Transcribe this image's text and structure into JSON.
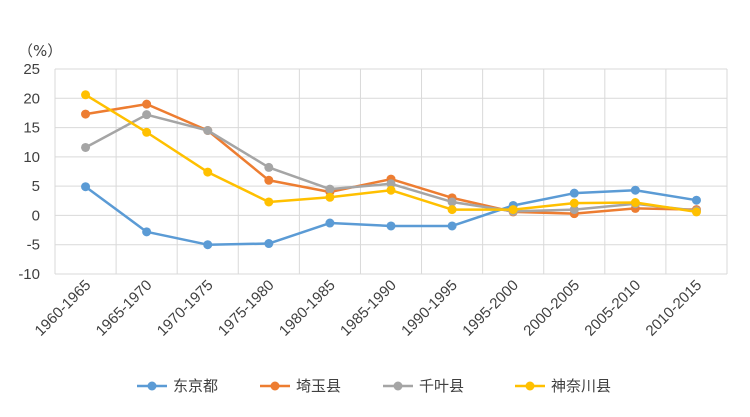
{
  "chart_data": {
    "type": "line",
    "unit_label": "（%）",
    "categories": [
      "1960-1965",
      "1965-1970",
      "1970-1975",
      "1975-1980",
      "1980-1985",
      "1985-1990",
      "1990-1995",
      "1995-2000",
      "2000-2005",
      "2005-2010",
      "2010-2015"
    ],
    "ylim": [
      -10,
      25
    ],
    "yticks": [
      25,
      20,
      15,
      10,
      5,
      0,
      -5,
      -10
    ],
    "grid": true,
    "legend_position": "bottom",
    "series": [
      {
        "name": "东京都",
        "color": "#5B9BD5",
        "values": [
          4.9,
          -2.8,
          -5.0,
          -4.8,
          -1.3,
          -1.8,
          -1.8,
          1.7,
          3.8,
          4.3,
          2.6
        ]
      },
      {
        "name": "埼玉县",
        "color": "#ED7D31",
        "values": [
          17.3,
          19.0,
          14.5,
          6.0,
          4.0,
          6.2,
          3.0,
          0.6,
          0.3,
          1.2,
          1.0
        ]
      },
      {
        "name": "千叶县",
        "color": "#A5A5A5",
        "values": [
          11.6,
          17.2,
          14.5,
          8.2,
          4.5,
          5.4,
          2.3,
          0.7,
          1.0,
          2.0,
          0.8
        ]
      },
      {
        "name": "神奈川县",
        "color": "#FFC000",
        "values": [
          20.6,
          14.2,
          7.4,
          2.3,
          3.1,
          4.3,
          1.0,
          1.0,
          2.1,
          2.2,
          0.6
        ]
      }
    ]
  }
}
